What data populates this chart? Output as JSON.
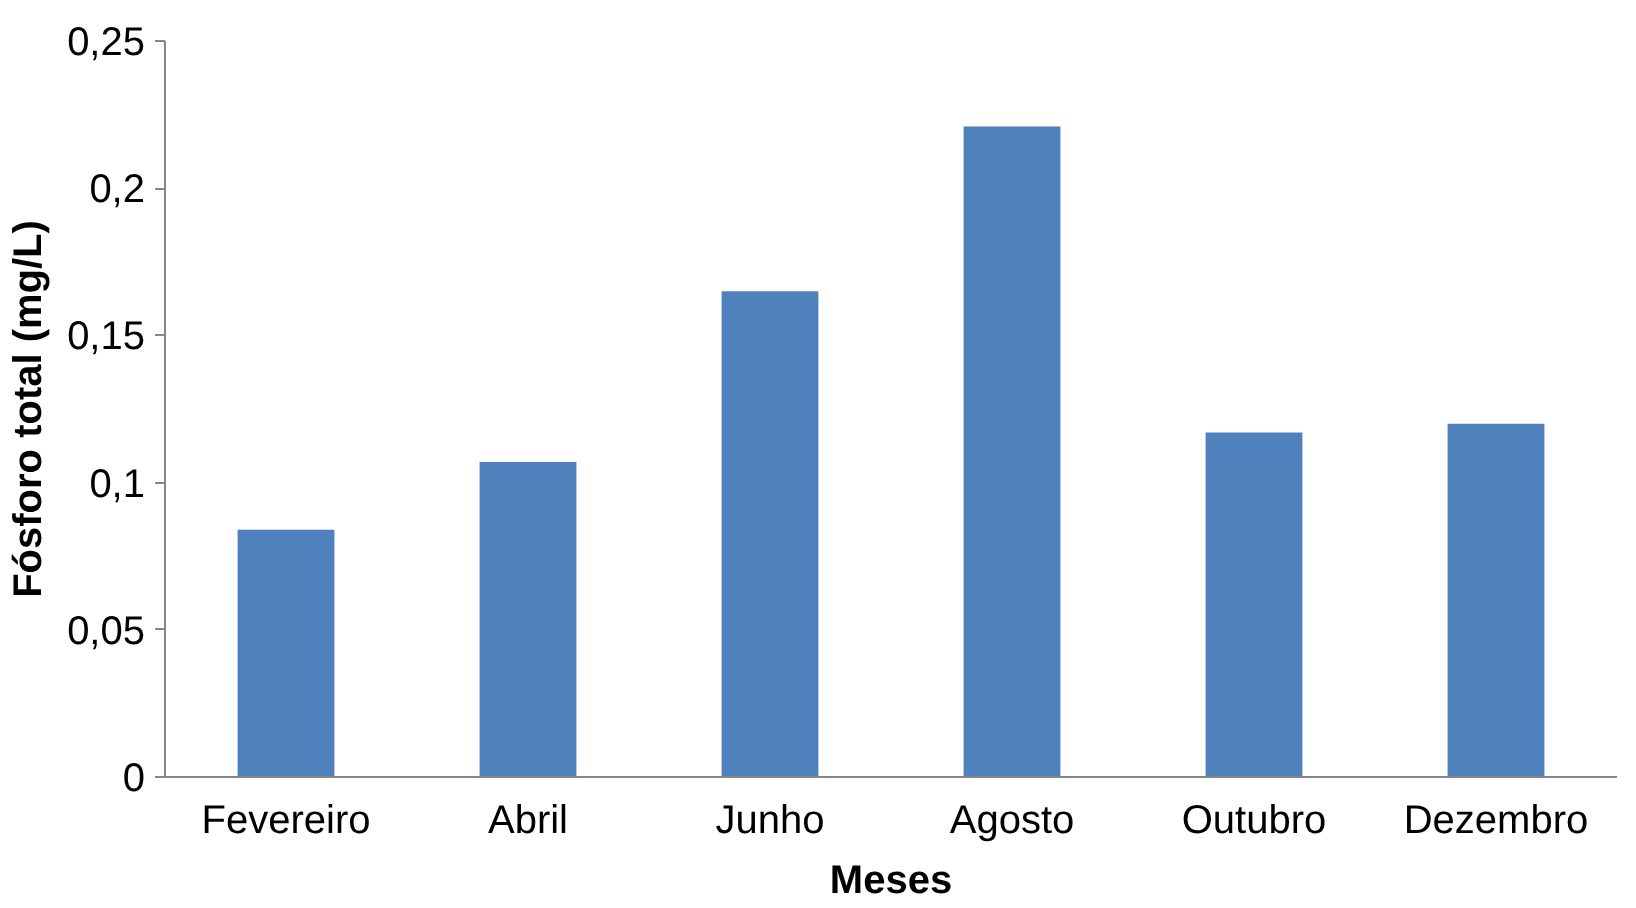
{
  "chart_data": {
    "type": "bar",
    "xlabel": "Meses",
    "ylabel": "Fósforo total (mg/L)",
    "categories": [
      "Fevereiro",
      "Abril",
      "Junho",
      "Agosto",
      "Outubro",
      "Dezembro"
    ],
    "values": [
      0.084,
      0.107,
      0.165,
      0.221,
      0.117,
      0.12
    ],
    "color": "#4f81bd",
    "ylim": [
      0,
      0.25
    ],
    "yticks": [
      0,
      {
        "value": 0.05,
        "label": "0,05"
      },
      {
        "value": 0.1,
        "label": "0,1"
      },
      {
        "value": 0.15,
        "label": "0,15"
      },
      {
        "value": 0.2,
        "label": "0,2"
      },
      {
        "value": 0.25,
        "label": "0,25"
      }
    ],
    "grid": false
  }
}
